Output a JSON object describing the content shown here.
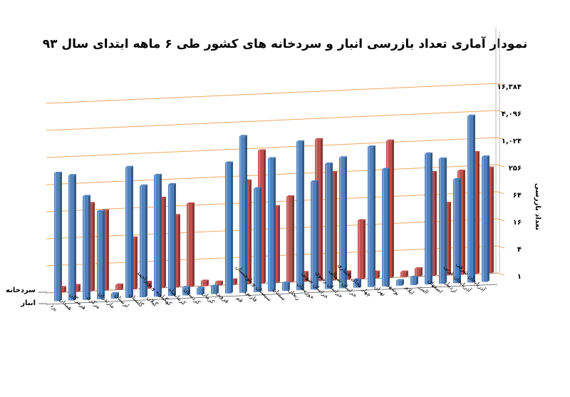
{
  "chart_data": {
    "type": "bar",
    "title": "نمودار آماری تعداد بازرسی انبار و سردخانه های کشور طی ۶ ماهه ابتدای سال ۹۳",
    "ylabel": "تعداد بازرسی",
    "scale": "log2",
    "yticks": [
      "۱",
      "۴",
      "۱۶",
      "۶۴",
      "۲۵۶",
      "۱,۰۲۴",
      "۴,۰۹۶",
      "۱۶,۳۸۴"
    ],
    "ylim": [
      1,
      65536
    ],
    "categories": [
      "یزد",
      "همدان",
      "هرمزگان",
      "مرکزی",
      "مازندران",
      "لرستان",
      "گلستان",
      "گیلان",
      "کهگیلویه و بویراحمد",
      "کرمانشاه",
      "کردستان",
      "کرمان",
      "قزوین",
      "قم",
      "فارس",
      "سیستان و بلوچستان",
      "سمنان",
      "زنجان",
      "خوزستان",
      "خراسان جنوبی",
      "خراسان رضوی",
      "خراسان شمالی",
      "چهار محال بختیاری",
      "تهران",
      "بوشهر",
      "ایلام",
      "البرز",
      "اصفهان",
      "اردبیل",
      "آذربایجان غربی",
      "آذربایجان شرقی"
    ],
    "series": [
      {
        "name": "سردخانه",
        "color": "#c0504d",
        "values": [
          1.3,
          1.4,
          90,
          60,
          1.3,
          14,
          1.4,
          100,
          40,
          70,
          1.3,
          1.2,
          1.3,
          200,
          900,
          50,
          80,
          1.6,
          1400,
          250,
          1.5,
          20,
          1.4,
          1100,
          1.3,
          1.5,
          200,
          40,
          200,
          500,
          220
        ]
      },
      {
        "name": "انبار",
        "color": "#4f81bd",
        "values": [
          700,
          600,
          200,
          90,
          1.3,
          800,
          300,
          500,
          300,
          1.5,
          1.4,
          1.5,
          800,
          3000,
          200,
          900,
          1.5,
          2000,
          250,
          600,
          800,
          1.5,
          1300,
          400,
          1.3,
          1.5,
          800,
          600,
          200,
          5000,
          600
        ]
      }
    ],
    "legend": "left",
    "grid": true
  }
}
